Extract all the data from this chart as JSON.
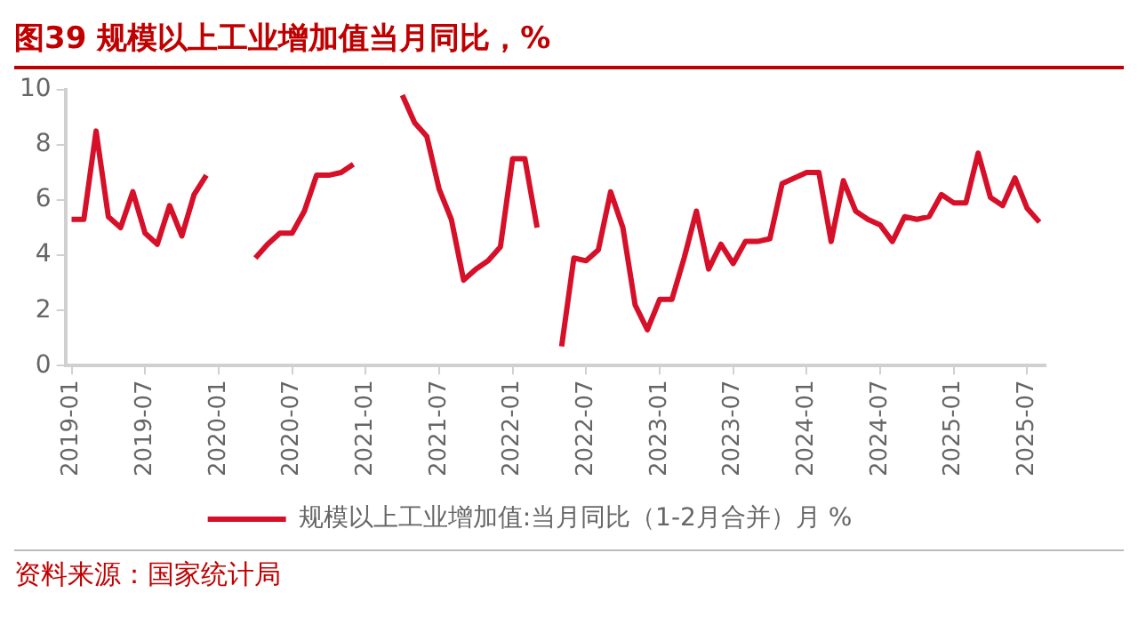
{
  "chart_data": {
    "type": "line",
    "title": "图39  规模以上工业增加值当月同比，%",
    "categories": [
      "2019-01",
      null,
      null,
      null,
      null,
      null,
      "2019-07",
      null,
      null,
      null,
      null,
      null,
      "2020-01",
      null,
      null,
      null,
      null,
      null,
      "2020-07",
      null,
      null,
      null,
      null,
      null,
      "2021-01",
      null,
      null,
      null,
      null,
      null,
      "2021-07",
      null,
      null,
      null,
      null,
      null,
      "2022-01",
      null,
      null,
      null,
      null,
      null,
      "2022-07",
      null,
      null,
      null,
      null,
      null,
      "2023-01",
      null,
      null,
      null,
      null,
      null,
      "2023-07",
      null,
      null,
      null,
      null,
      null,
      "2024-01",
      null,
      null,
      null,
      null,
      null,
      "2024-07",
      null,
      null,
      null,
      null,
      null,
      "2025-01",
      null,
      null,
      null,
      null,
      null,
      "2025-07",
      null
    ],
    "series": [
      {
        "name": "规模以上工业增加值:当月同比（1-2月合并）月 %",
        "color": "#d7102a",
        "values": [
          5.3,
          5.3,
          8.5,
          5.4,
          5.0,
          6.3,
          4.8,
          4.4,
          5.8,
          4.7,
          6.2,
          6.9,
          null,
          null,
          null,
          3.9,
          4.4,
          4.8,
          4.8,
          5.6,
          6.9,
          6.9,
          7.0,
          7.3,
          null,
          null,
          null,
          9.8,
          8.8,
          8.3,
          6.4,
          5.3,
          3.1,
          3.5,
          3.8,
          4.3,
          7.5,
          7.5,
          5.0,
          null,
          0.7,
          3.9,
          3.8,
          4.2,
          6.3,
          5.0,
          2.2,
          1.3,
          2.4,
          2.4,
          3.9,
          5.6,
          3.5,
          4.4,
          3.7,
          4.5,
          4.5,
          4.6,
          6.6,
          6.8,
          7.0,
          7.0,
          4.5,
          6.7,
          5.6,
          5.3,
          5.1,
          4.5,
          5.4,
          5.3,
          5.4,
          6.2,
          5.9,
          5.9,
          7.7,
          6.1,
          5.8,
          6.8,
          5.7,
          5.2
        ]
      }
    ],
    "ylim": [
      0,
      10
    ],
    "yticks": [
      0,
      2,
      4,
      6,
      8,
      10
    ],
    "grid": false,
    "legend": "bottom",
    "marker": "none",
    "line_style": "solid",
    "annotations": [
      "资料来源：国家统计局"
    ]
  }
}
